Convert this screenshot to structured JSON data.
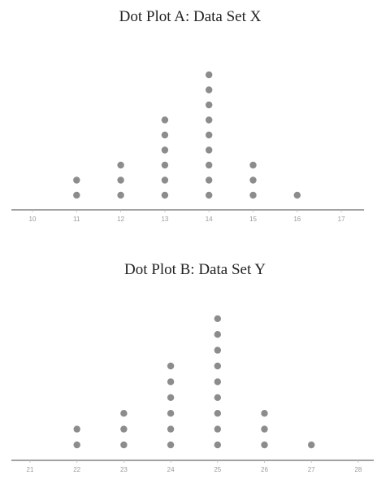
{
  "chart_data": [
    {
      "type": "scatter",
      "subtype": "dot-plot",
      "title": "Dot Plot A: Data Set X",
      "xlim": [
        10,
        17
      ],
      "ticks": [
        10,
        11,
        12,
        13,
        14,
        15,
        16,
        17
      ],
      "tick_labels": [
        "10",
        "11",
        "12",
        "13",
        "14",
        "15",
        "16",
        "17"
      ],
      "x": [
        11,
        12,
        13,
        14,
        15,
        16
      ],
      "counts": [
        2,
        3,
        6,
        9,
        3,
        1
      ],
      "dot_color": "#8c8c8c",
      "axis_color": "#444444"
    },
    {
      "type": "scatter",
      "subtype": "dot-plot",
      "title": "Dot Plot B: Data Set Y",
      "xlim": [
        21,
        28
      ],
      "ticks": [
        21,
        22,
        23,
        24,
        25,
        26,
        27,
        28
      ],
      "tick_labels": [
        "21",
        "22",
        "23",
        "24",
        "25",
        "26",
        "27",
        "28"
      ],
      "x": [
        22,
        23,
        24,
        25,
        26,
        27
      ],
      "counts": [
        2,
        3,
        6,
        9,
        3,
        1
      ],
      "dot_color": "#8c8c8c",
      "axis_color": "#444444"
    }
  ]
}
